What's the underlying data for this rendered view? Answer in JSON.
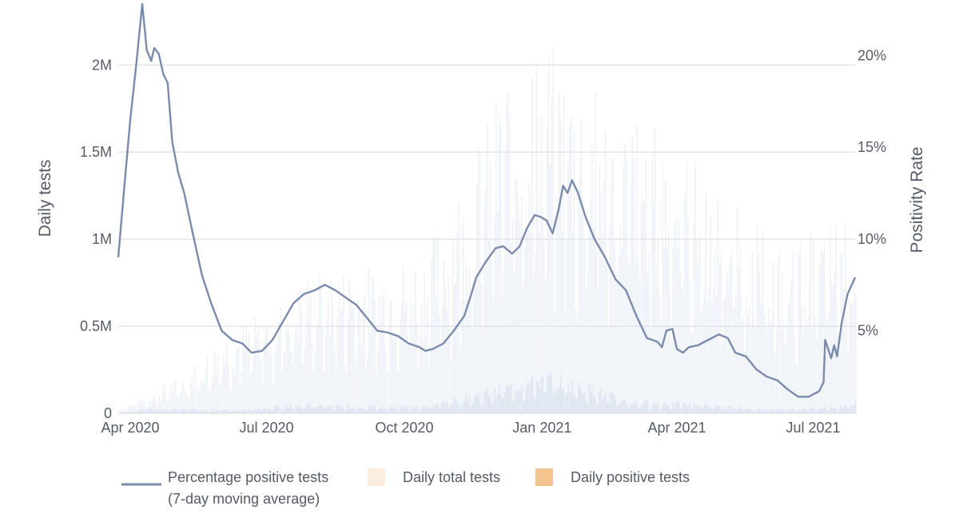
{
  "chart_data": {
    "type": "bar+line",
    "title": "",
    "x_range": [
      "2020-03-24",
      "2021-07-29"
    ],
    "x_ticks": [
      {
        "date": "2020-04-01",
        "label": "Apr 2020"
      },
      {
        "date": "2020-07-01",
        "label": "Jul 2020"
      },
      {
        "date": "2020-10-01",
        "label": "Oct 2020"
      },
      {
        "date": "2021-01-01",
        "label": "Jan 2021"
      },
      {
        "date": "2021-04-01",
        "label": "Apr 2021"
      },
      {
        "date": "2021-07-01",
        "label": "Jul 2021"
      }
    ],
    "y_left": {
      "label": "Daily tests",
      "range": [
        0,
        2350000
      ],
      "ticks": [
        {
          "value": 0,
          "label": "0"
        },
        {
          "value": 500000,
          "label": "0.5M"
        },
        {
          "value": 1000000,
          "label": "1M"
        },
        {
          "value": 1500000,
          "label": "1.5M"
        },
        {
          "value": 2000000,
          "label": "2M"
        }
      ]
    },
    "y_right": {
      "label": "Positivity Rate",
      "range": [
        0.5,
        22.8
      ],
      "ticks": [
        {
          "value": 5,
          "label": "5%"
        },
        {
          "value": 10,
          "label": "10%"
        },
        {
          "value": 15,
          "label": "15%"
        },
        {
          "value": 20,
          "label": "20%"
        }
      ]
    },
    "grid": "horizontal",
    "legend_position": "bottom",
    "series": [
      {
        "name": "Percentage positive tests (7-day moving average)",
        "legend_lines": [
          "Percentage positive tests",
          "(7-day moving average)"
        ],
        "type": "line",
        "axis": "right",
        "color": "#7b8bab",
        "points": [
          [
            "2020-03-24",
            9.0
          ],
          [
            "2020-03-28",
            12.8
          ],
          [
            "2020-04-01",
            16.5
          ],
          [
            "2020-04-05",
            19.5
          ],
          [
            "2020-04-09",
            22.8
          ],
          [
            "2020-04-12",
            20.3
          ],
          [
            "2020-04-15",
            19.7
          ],
          [
            "2020-04-17",
            20.4
          ],
          [
            "2020-04-20",
            20.1
          ],
          [
            "2020-04-23",
            19.0
          ],
          [
            "2020-04-26",
            18.5
          ],
          [
            "2020-04-29",
            15.3
          ],
          [
            "2020-05-03",
            13.6
          ],
          [
            "2020-05-07",
            12.5
          ],
          [
            "2020-05-13",
            10.2
          ],
          [
            "2020-05-19",
            8.0
          ],
          [
            "2020-05-25",
            6.5
          ],
          [
            "2020-06-01",
            5.0
          ],
          [
            "2020-06-08",
            4.5
          ],
          [
            "2020-06-15",
            4.3
          ],
          [
            "2020-06-21",
            3.8
          ],
          [
            "2020-06-28",
            3.9
          ],
          [
            "2020-07-05",
            4.5
          ],
          [
            "2020-07-12",
            5.5
          ],
          [
            "2020-07-19",
            6.5
          ],
          [
            "2020-07-26",
            7.0
          ],
          [
            "2020-08-02",
            7.2
          ],
          [
            "2020-08-09",
            7.5
          ],
          [
            "2020-08-16",
            7.2
          ],
          [
            "2020-08-23",
            6.8
          ],
          [
            "2020-08-30",
            6.4
          ],
          [
            "2020-09-06",
            5.7
          ],
          [
            "2020-09-13",
            5.0
          ],
          [
            "2020-09-20",
            4.9
          ],
          [
            "2020-09-27",
            4.7
          ],
          [
            "2020-10-04",
            4.3
          ],
          [
            "2020-10-11",
            4.1
          ],
          [
            "2020-10-15",
            3.9
          ],
          [
            "2020-10-20",
            4.0
          ],
          [
            "2020-10-27",
            4.3
          ],
          [
            "2020-11-03",
            5.0
          ],
          [
            "2020-11-10",
            5.8
          ],
          [
            "2020-11-14",
            6.8
          ],
          [
            "2020-11-18",
            7.9
          ],
          [
            "2020-11-24",
            8.7
          ],
          [
            "2020-12-01",
            9.5
          ],
          [
            "2020-12-06",
            9.6
          ],
          [
            "2020-12-12",
            9.2
          ],
          [
            "2020-12-17",
            9.6
          ],
          [
            "2020-12-22",
            10.6
          ],
          [
            "2020-12-27",
            11.3
          ],
          [
            "2020-12-31",
            11.2
          ],
          [
            "2021-01-04",
            11.0
          ],
          [
            "2021-01-08",
            10.3
          ],
          [
            "2021-01-12",
            11.6
          ],
          [
            "2021-01-15",
            12.9
          ],
          [
            "2021-01-18",
            12.5
          ],
          [
            "2021-01-21",
            13.2
          ],
          [
            "2021-01-25",
            12.5
          ],
          [
            "2021-01-30",
            11.2
          ],
          [
            "2021-02-05",
            10.0
          ],
          [
            "2021-02-12",
            9.0
          ],
          [
            "2021-02-19",
            7.8
          ],
          [
            "2021-02-26",
            7.2
          ],
          [
            "2021-03-05",
            5.8
          ],
          [
            "2021-03-12",
            4.6
          ],
          [
            "2021-03-19",
            4.4
          ],
          [
            "2021-03-22",
            4.1
          ],
          [
            "2021-03-25",
            5.0
          ],
          [
            "2021-03-29",
            5.1
          ],
          [
            "2021-04-01",
            4.0
          ],
          [
            "2021-04-05",
            3.8
          ],
          [
            "2021-04-09",
            4.1
          ],
          [
            "2021-04-15",
            4.2
          ],
          [
            "2021-04-22",
            4.5
          ],
          [
            "2021-04-29",
            4.8
          ],
          [
            "2021-05-05",
            4.6
          ],
          [
            "2021-05-10",
            3.8
          ],
          [
            "2021-05-17",
            3.6
          ],
          [
            "2021-05-24",
            2.9
          ],
          [
            "2021-05-31",
            2.5
          ],
          [
            "2021-06-07",
            2.3
          ],
          [
            "2021-06-14",
            1.8
          ],
          [
            "2021-06-21",
            1.4
          ],
          [
            "2021-06-28",
            1.4
          ],
          [
            "2021-07-05",
            1.7
          ],
          [
            "2021-07-08",
            2.2
          ],
          [
            "2021-07-09",
            4.5
          ],
          [
            "2021-07-11",
            4.0
          ],
          [
            "2021-07-13",
            3.5
          ],
          [
            "2021-07-15",
            4.2
          ],
          [
            "2021-07-17",
            3.6
          ],
          [
            "2021-07-20",
            5.4
          ],
          [
            "2021-07-24",
            7.0
          ],
          [
            "2021-07-29",
            7.9
          ]
        ]
      },
      {
        "name": "Daily total tests",
        "type": "bar",
        "axis": "left",
        "color": "#dfe5f1",
        "legend_color": "#fbeee0",
        "envelope": [
          [
            "2020-03-24",
            20000
          ],
          [
            "2020-04-01",
            60000
          ],
          [
            "2020-04-20",
            150000
          ],
          [
            "2020-05-10",
            250000
          ],
          [
            "2020-06-01",
            450000
          ],
          [
            "2020-07-01",
            600000
          ],
          [
            "2020-07-25",
            800000
          ],
          [
            "2020-08-15",
            850000
          ],
          [
            "2020-09-15",
            850000
          ],
          [
            "2020-10-15",
            950000
          ],
          [
            "2020-11-05",
            1300000
          ],
          [
            "2020-11-25",
            1700000
          ],
          [
            "2020-12-10",
            2050000
          ],
          [
            "2021-01-05",
            2150000
          ],
          [
            "2021-01-20",
            2000000
          ],
          [
            "2021-02-15",
            1800000
          ],
          [
            "2021-03-15",
            1700000
          ],
          [
            "2021-04-10",
            1500000
          ],
          [
            "2021-05-10",
            1200000
          ],
          [
            "2021-06-10",
            950000
          ],
          [
            "2021-07-10",
            1100000
          ],
          [
            "2021-07-29",
            1250000
          ]
        ]
      },
      {
        "name": "Daily positive tests",
        "type": "bar",
        "axis": "left",
        "color": "#d3dbeb",
        "legend_color": "#f4c48e",
        "envelope": [
          [
            "2020-03-24",
            3000
          ],
          [
            "2020-04-10",
            30000
          ],
          [
            "2020-05-15",
            25000
          ],
          [
            "2020-06-15",
            20000
          ],
          [
            "2020-07-20",
            60000
          ],
          [
            "2020-09-15",
            40000
          ],
          [
            "2020-10-15",
            50000
          ],
          [
            "2020-11-15",
            120000
          ],
          [
            "2020-12-15",
            200000
          ],
          [
            "2021-01-05",
            250000
          ],
          [
            "2021-02-01",
            170000
          ],
          [
            "2021-03-01",
            80000
          ],
          [
            "2021-04-15",
            60000
          ],
          [
            "2021-06-01",
            25000
          ],
          [
            "2021-07-15",
            40000
          ],
          [
            "2021-07-29",
            80000
          ]
        ]
      }
    ]
  }
}
